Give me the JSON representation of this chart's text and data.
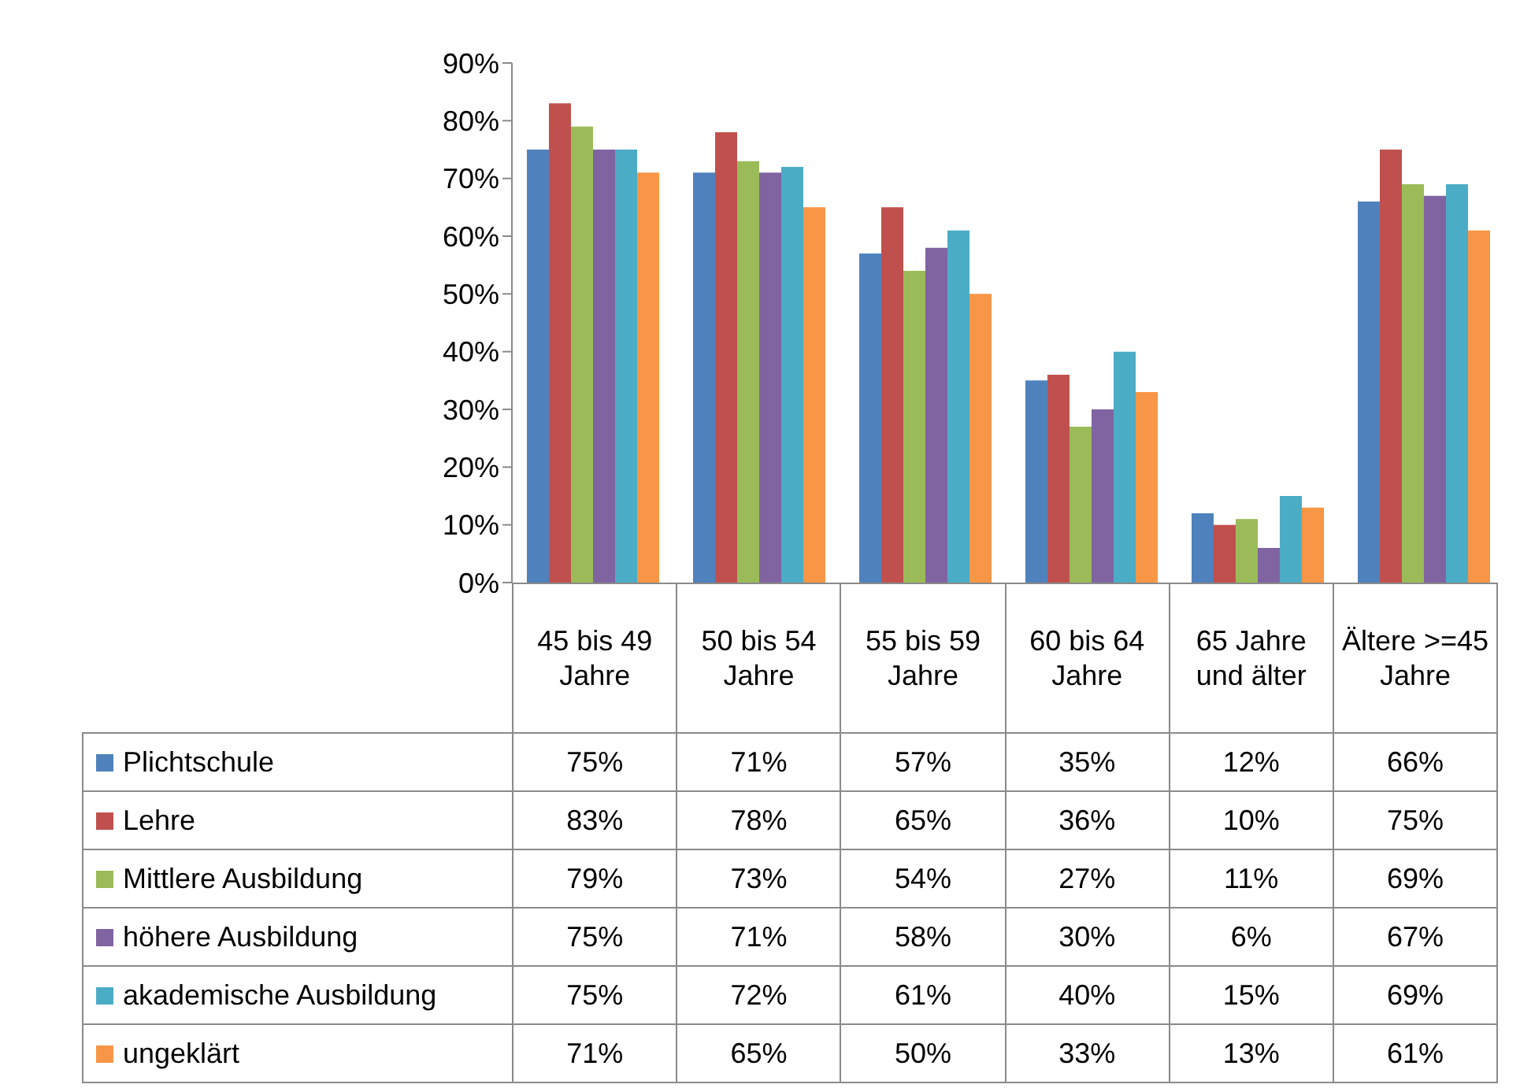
{
  "chart_data": {
    "type": "bar",
    "categories": [
      "45 bis 49 Jahre",
      "50 bis 54 Jahre",
      "55 bis 59 Jahre",
      "60 bis 64 Jahre",
      "65 Jahre und älter",
      "Ältere >=45 Jahre"
    ],
    "series": [
      {
        "name": "Plichtschule",
        "color": "#4f81bd",
        "values": [
          75,
          71,
          57,
          35,
          12,
          66
        ],
        "value_labels": [
          "75%",
          "71%",
          "57%",
          "35%",
          "12%",
          "66%"
        ]
      },
      {
        "name": "Lehre",
        "color": "#c0504d",
        "values": [
          83,
          78,
          65,
          36,
          10,
          75
        ],
        "value_labels": [
          "83%",
          "78%",
          "65%",
          "36%",
          "10%",
          "75%"
        ]
      },
      {
        "name": "Mittlere Ausbildung",
        "color": "#9bbb59",
        "values": [
          79,
          73,
          54,
          27,
          11,
          69
        ],
        "value_labels": [
          "79%",
          "73%",
          "54%",
          "27%",
          "11%",
          "69%"
        ]
      },
      {
        "name": "höhere Ausbildung",
        "color": "#8064a2",
        "values": [
          75,
          71,
          58,
          30,
          6,
          67
        ],
        "value_labels": [
          "75%",
          "71%",
          "58%",
          "30%",
          "6%",
          "67%"
        ]
      },
      {
        "name": "akademische Ausbildung",
        "color": "#4bacc6",
        "values": [
          75,
          72,
          61,
          40,
          15,
          69
        ],
        "value_labels": [
          "75%",
          "72%",
          "61%",
          "40%",
          "15%",
          "69%"
        ]
      },
      {
        "name": "ungeklärt",
        "color": "#f79646",
        "values": [
          71,
          65,
          50,
          33,
          13,
          61
        ],
        "value_labels": [
          "71%",
          "65%",
          "50%",
          "33%",
          "13%",
          "61%"
        ]
      }
    ],
    "ylim": [
      0,
      90
    ],
    "yticks": [
      {
        "value": 0,
        "label": "0%"
      },
      {
        "value": 10,
        "label": "10%"
      },
      {
        "value": 20,
        "label": "20%"
      },
      {
        "value": 30,
        "label": "30%"
      },
      {
        "value": 40,
        "label": "40%"
      },
      {
        "value": 50,
        "label": "50%"
      },
      {
        "value": 60,
        "label": "60%"
      },
      {
        "value": 70,
        "label": "70%"
      },
      {
        "value": 80,
        "label": "80%"
      },
      {
        "value": 90,
        "label": "90%"
      }
    ],
    "grid": false,
    "legend": "bottom"
  }
}
